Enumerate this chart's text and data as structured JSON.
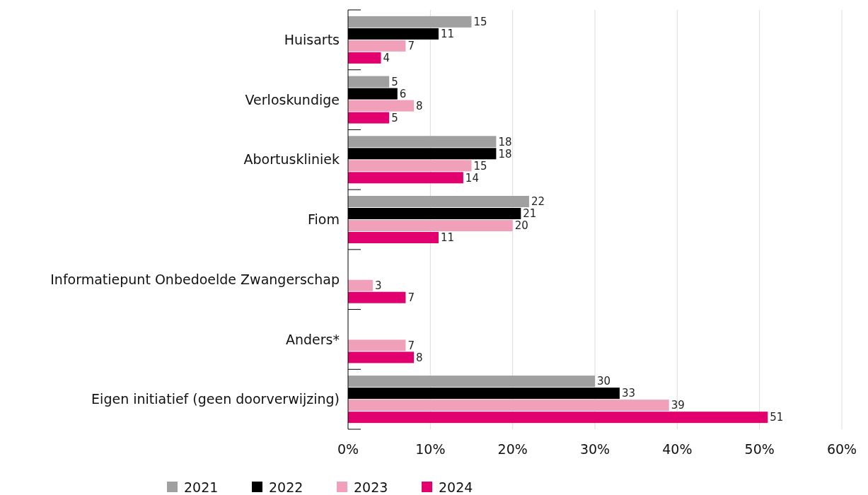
{
  "chart_data": {
    "type": "bar",
    "orientation": "horizontal",
    "categories": [
      "Huisarts",
      "Verloskundige",
      "Abortuskliniek",
      "Fiom",
      "Informatiepunt Onbedoelde Zwangerschap",
      "Anders*",
      "Eigen initiatief (geen doorverwijzing)"
    ],
    "series": [
      {
        "name": "2021",
        "color": "#a0a0a0",
        "values": [
          15,
          5,
          18,
          22,
          null,
          null,
          30
        ]
      },
      {
        "name": "2022",
        "color": "#000000",
        "values": [
          11,
          6,
          18,
          21,
          null,
          null,
          33
        ]
      },
      {
        "name": "2023",
        "color": "#f0a0b9",
        "values": [
          7,
          8,
          15,
          20,
          3,
          7,
          39
        ]
      },
      {
        "name": "2024",
        "color": "#e2006f",
        "values": [
          4,
          5,
          14,
          11,
          7,
          8,
          51
        ]
      }
    ],
    "xlim": [
      0,
      60
    ],
    "xticks": [
      {
        "value": 0,
        "label": "0%"
      },
      {
        "value": 10,
        "label": "10%"
      },
      {
        "value": 20,
        "label": "20%"
      },
      {
        "value": 30,
        "label": "30%"
      },
      {
        "value": 40,
        "label": "40%"
      },
      {
        "value": 50,
        "label": "50%"
      },
      {
        "value": 60,
        "label": "60%"
      }
    ],
    "grid": "x",
    "data_labels": true,
    "legend": "bottom"
  }
}
